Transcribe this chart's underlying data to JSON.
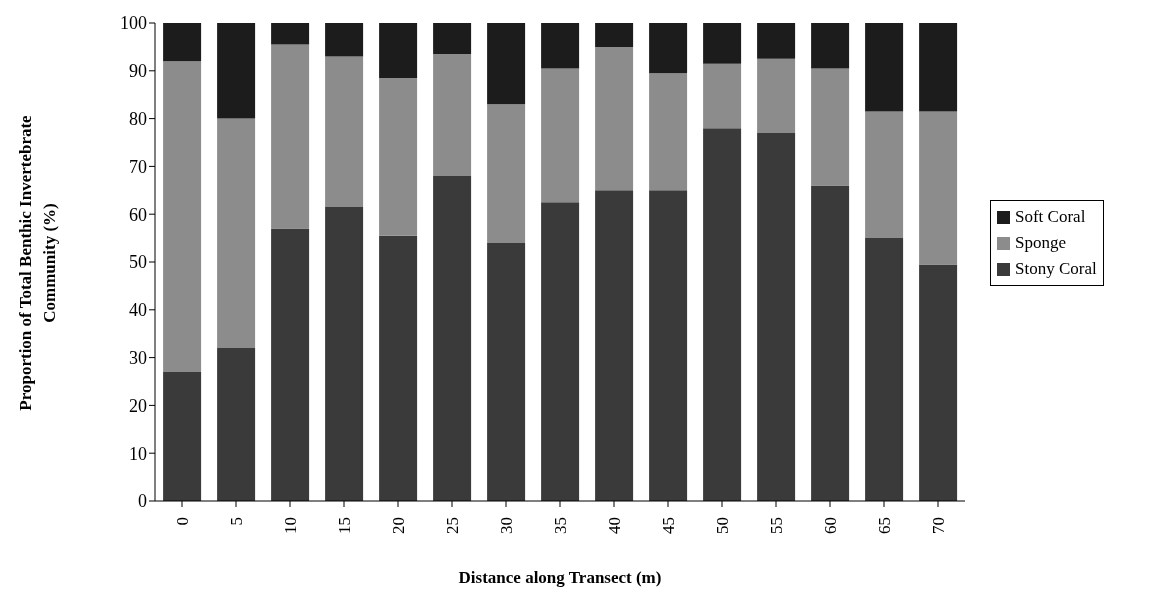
{
  "chart_data": {
    "type": "bar",
    "stacked": true,
    "xlabel": "Distance along Transect (m)",
    "ylabel": "Proportion of Total Benthic Invertebrate Community (%)",
    "categories": [
      "0",
      "5",
      "10",
      "15",
      "20",
      "25",
      "30",
      "35",
      "40",
      "45",
      "50",
      "55",
      "60",
      "65",
      "70"
    ],
    "series": [
      {
        "name": "Stony Coral",
        "color": "#3a3a3a",
        "values": [
          27,
          32,
          57,
          61.5,
          55.5,
          68,
          54,
          62.5,
          65,
          65,
          78,
          77,
          66,
          55,
          49.5
        ]
      },
      {
        "name": "Sponge",
        "color": "#8c8c8c",
        "values": [
          65,
          48,
          38.5,
          31.5,
          33,
          25.5,
          29,
          28,
          30,
          24.5,
          13.5,
          15.5,
          24.5,
          26.5,
          32
        ]
      },
      {
        "name": "Soft Coral",
        "color": "#1c1c1c",
        "values": [
          8,
          20,
          4.5,
          7,
          11.5,
          6.5,
          17,
          9.5,
          5,
          10.5,
          8.5,
          7.5,
          9.5,
          18.5,
          18.5
        ]
      }
    ],
    "ylim": [
      0,
      100
    ],
    "yticks": [
      0,
      10,
      20,
      30,
      40,
      50,
      60,
      70,
      80,
      90,
      100
    ],
    "grid": false,
    "legend": "right"
  }
}
